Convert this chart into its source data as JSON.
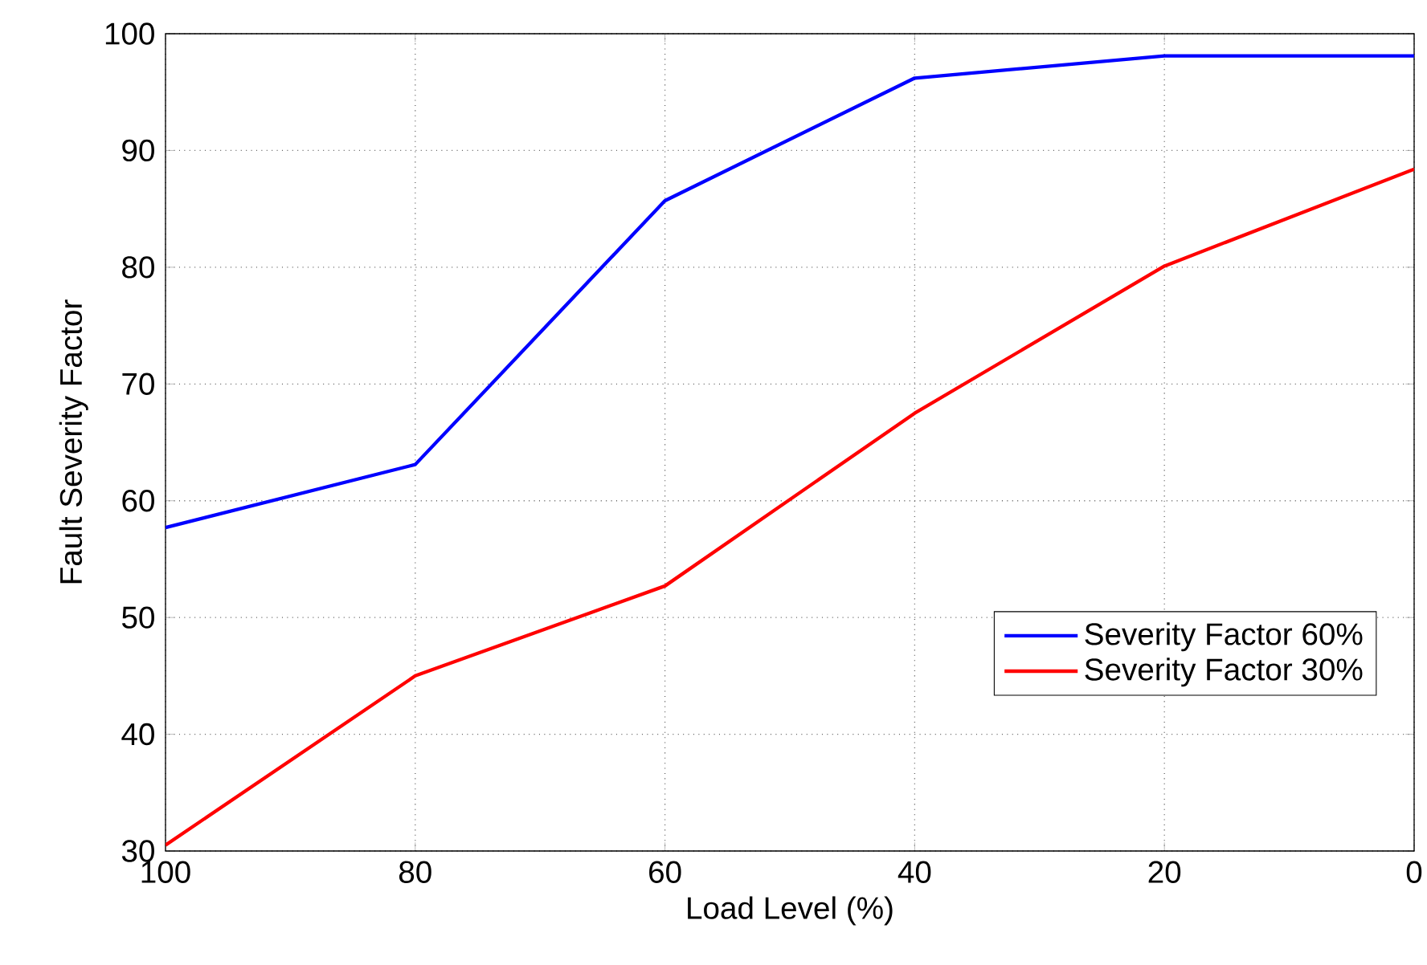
{
  "chart_data": {
    "type": "line",
    "xlabel": "Load Level (%)",
    "ylabel": "Fault Severity Factor",
    "x": [
      100,
      80,
      60,
      40,
      20,
      0
    ],
    "series": [
      {
        "name": "Severity Factor 60%",
        "color": "#0000ff",
        "values": [
          57.7,
          63.1,
          85.7,
          96.2,
          98.1,
          98.1
        ]
      },
      {
        "name": "Severity Factor 30%",
        "color": "#ff0000",
        "values": [
          30.5,
          45.0,
          52.7,
          67.5,
          80.1,
          88.4
        ]
      }
    ],
    "xlim": [
      100,
      0
    ],
    "xticks": [
      100,
      80,
      60,
      40,
      20,
      0
    ],
    "ylim": [
      30,
      100
    ],
    "yticks": [
      30,
      40,
      50,
      60,
      70,
      80,
      90,
      100
    ],
    "grid": true,
    "legend": "bottom right",
    "marker": "none",
    "line_style": "solid"
  }
}
